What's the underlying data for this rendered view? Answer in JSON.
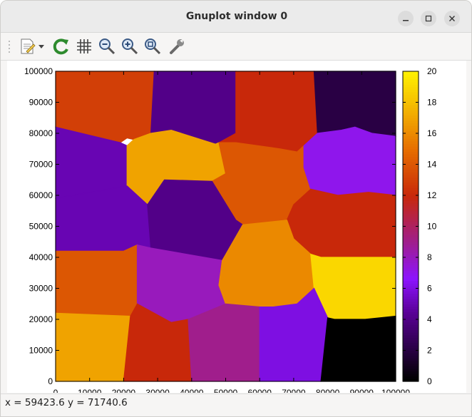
{
  "window": {
    "title": "Gnuplot window 0"
  },
  "toolbar": {
    "icons": [
      "export-document-icon",
      "dropdown-arrow-icon",
      "replot-icon",
      "grid-icon",
      "zoom-out-icon",
      "zoom-in-icon",
      "zoom-fit-icon",
      "settings-wrench-icon"
    ]
  },
  "status": {
    "text": "x = 59423.6 y = 71740.6"
  },
  "chart_data": {
    "type": "heatmap",
    "title": "",
    "xlabel": "",
    "ylabel": "",
    "xlim": [
      0,
      100000
    ],
    "ylim": [
      0,
      100000
    ],
    "xticks": [
      "0",
      "10000",
      "20000",
      "30000",
      "40000",
      "50000",
      "60000",
      "70000",
      "80000",
      "90000",
      "100000"
    ],
    "yticks": [
      "0",
      "10000",
      "20000",
      "30000",
      "40000",
      "50000",
      "60000",
      "70000",
      "80000",
      "90000",
      "100000"
    ],
    "colorbar": {
      "range": [
        0,
        20
      ],
      "ticks": [
        "0",
        "2",
        "4",
        "6",
        "8",
        "10",
        "12",
        "14",
        "16",
        "18",
        "20"
      ],
      "palette": "black-purple-red-orange-yellow"
    },
    "regions": [
      {
        "value": 13,
        "polygon": [
          [
            0,
            100000
          ],
          [
            29000,
            100000
          ],
          [
            28000,
            80000
          ],
          [
            23000,
            78000
          ],
          [
            21000,
            78500
          ],
          [
            19000,
            77000
          ],
          [
            0,
            82000
          ]
        ]
      },
      {
        "value": 4,
        "polygon": [
          [
            29000,
            100000
          ],
          [
            53000,
            100000
          ],
          [
            53000,
            84000
          ],
          [
            53000,
            80000
          ],
          [
            48000,
            77000
          ],
          [
            47000,
            76500
          ],
          [
            34000,
            81000
          ],
          [
            28000,
            80000
          ]
        ]
      },
      {
        "value": 12,
        "polygon": [
          [
            53000,
            100000
          ],
          [
            76000,
            100000
          ],
          [
            77000,
            80000
          ],
          [
            73000,
            76000
          ],
          [
            71000,
            74000
          ],
          [
            66000,
            75000
          ],
          [
            53000,
            77000
          ],
          [
            48000,
            77000
          ],
          [
            53000,
            80000
          ]
        ]
      },
      {
        "value": 2,
        "polygon": [
          [
            76000,
            100000
          ],
          [
            100000,
            100000
          ],
          [
            100000,
            79000
          ],
          [
            93000,
            80000
          ],
          [
            88000,
            82000
          ],
          [
            84000,
            81000
          ],
          [
            77000,
            80000
          ]
        ]
      },
      {
        "value": 5,
        "polygon": [
          [
            0,
            82000
          ],
          [
            19000,
            77000
          ],
          [
            21000,
            76000
          ],
          [
            21000,
            66000
          ],
          [
            21000,
            63000
          ],
          [
            0,
            59000
          ]
        ]
      },
      {
        "value": 17,
        "polygon": [
          [
            21000,
            76000
          ],
          [
            23000,
            78000
          ],
          [
            28000,
            80000
          ],
          [
            34000,
            81000
          ],
          [
            47000,
            76500
          ],
          [
            48000,
            77000
          ],
          [
            50000,
            67000
          ],
          [
            46000,
            64500
          ],
          [
            32000,
            65000
          ],
          [
            27000,
            57000
          ],
          [
            21000,
            63000
          ]
        ]
      },
      {
        "value": 14,
        "polygon": [
          [
            48000,
            77000
          ],
          [
            53000,
            77000
          ],
          [
            66000,
            75000
          ],
          [
            71000,
            74000
          ],
          [
            73000,
            76000
          ],
          [
            73000,
            69000
          ],
          [
            75000,
            62000
          ],
          [
            70000,
            57000
          ],
          [
            68000,
            52000
          ],
          [
            55000,
            50500
          ],
          [
            53000,
            52000
          ],
          [
            46000,
            64500
          ],
          [
            50000,
            67000
          ]
        ]
      },
      {
        "value": 7,
        "polygon": [
          [
            73000,
            76000
          ],
          [
            77000,
            80000
          ],
          [
            84000,
            81000
          ],
          [
            88000,
            82000
          ],
          [
            93000,
            80000
          ],
          [
            100000,
            79000
          ],
          [
            100000,
            60000
          ],
          [
            92000,
            61000
          ],
          [
            83000,
            60000
          ],
          [
            75000,
            62000
          ],
          [
            73000,
            69000
          ]
        ]
      },
      {
        "value": 5,
        "polygon": [
          [
            0,
            59000
          ],
          [
            21000,
            63000
          ],
          [
            27000,
            57000
          ],
          [
            28000,
            43000
          ],
          [
            24000,
            44000
          ],
          [
            20000,
            42000
          ],
          [
            0,
            42000
          ]
        ]
      },
      {
        "value": 4,
        "polygon": [
          [
            27000,
            57000
          ],
          [
            32000,
            65000
          ],
          [
            46000,
            64500
          ],
          [
            53000,
            52000
          ],
          [
            55000,
            50500
          ],
          [
            49000,
            39000
          ],
          [
            28000,
            43000
          ]
        ]
      },
      {
        "value": 12,
        "polygon": [
          [
            75000,
            62000
          ],
          [
            83000,
            60000
          ],
          [
            92000,
            61000
          ],
          [
            100000,
            60000
          ],
          [
            100000,
            40000
          ],
          [
            78000,
            40000
          ],
          [
            75000,
            41000
          ],
          [
            70000,
            46000
          ],
          [
            68000,
            52000
          ],
          [
            70000,
            57000
          ]
        ]
      },
      {
        "value": 14,
        "polygon": [
          [
            0,
            42000
          ],
          [
            20000,
            42000
          ],
          [
            24000,
            44000
          ],
          [
            24000,
            25000
          ],
          [
            22000,
            21000
          ],
          [
            0,
            22000
          ]
        ]
      },
      {
        "value": 8,
        "polygon": [
          [
            24000,
            44000
          ],
          [
            28000,
            43000
          ],
          [
            49000,
            39000
          ],
          [
            48000,
            31000
          ],
          [
            50000,
            25000
          ],
          [
            39000,
            20000
          ],
          [
            34000,
            19000
          ],
          [
            24000,
            25000
          ]
        ]
      },
      {
        "value": 16,
        "polygon": [
          [
            49000,
            39000
          ],
          [
            55000,
            50500
          ],
          [
            68000,
            52000
          ],
          [
            70000,
            46000
          ],
          [
            75000,
            41000
          ],
          [
            76000,
            30000
          ],
          [
            71000,
            25000
          ],
          [
            64000,
            24000
          ],
          [
            60000,
            24000
          ],
          [
            50000,
            25000
          ],
          [
            48000,
            31000
          ]
        ]
      },
      {
        "value": 19,
        "polygon": [
          [
            75000,
            41000
          ],
          [
            78000,
            40000
          ],
          [
            100000,
            40000
          ],
          [
            100000,
            21000
          ],
          [
            91000,
            20000
          ],
          [
            82000,
            20000
          ],
          [
            80000,
            20500
          ],
          [
            76000,
            30000
          ]
        ]
      },
      {
        "value": 17,
        "polygon": [
          [
            0,
            22000
          ],
          [
            22000,
            21000
          ],
          [
            20000,
            0
          ],
          [
            0,
            0
          ]
        ]
      },
      {
        "value": 12,
        "polygon": [
          [
            22000,
            21000
          ],
          [
            24000,
            25000
          ],
          [
            34000,
            19000
          ],
          [
            39000,
            20000
          ],
          [
            40000,
            0
          ],
          [
            20000,
            0
          ]
        ]
      },
      {
        "value": 9,
        "polygon": [
          [
            39000,
            20000
          ],
          [
            50000,
            25000
          ],
          [
            60000,
            24000
          ],
          [
            60000,
            0
          ],
          [
            40000,
            0
          ]
        ]
      },
      {
        "value": 6,
        "polygon": [
          [
            60000,
            24000
          ],
          [
            64000,
            24000
          ],
          [
            71000,
            25000
          ],
          [
            76000,
            30000
          ],
          [
            80000,
            20500
          ],
          [
            78000,
            0
          ],
          [
            60000,
            0
          ]
        ]
      },
      {
        "value": 0,
        "polygon": [
          [
            80000,
            20500
          ],
          [
            82000,
            20000
          ],
          [
            91000,
            20000
          ],
          [
            100000,
            21000
          ],
          [
            100000,
            0
          ],
          [
            78000,
            0
          ]
        ]
      }
    ]
  }
}
